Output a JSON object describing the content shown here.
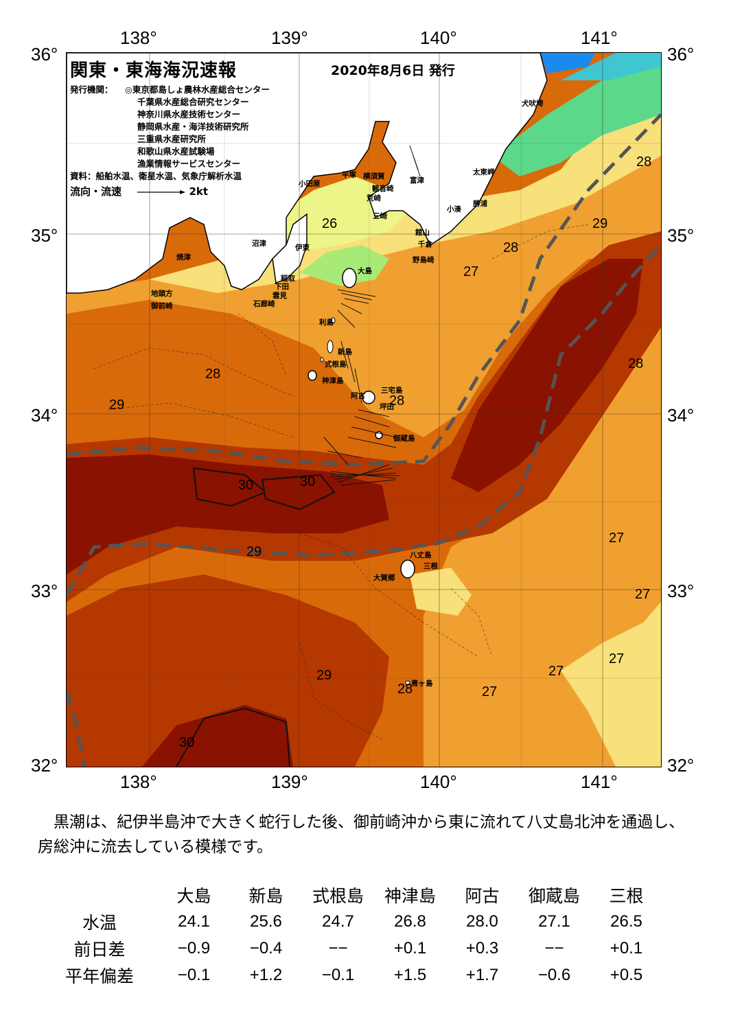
{
  "map": {
    "title": "関東・東海海況速報",
    "issue_date": "2020年8月6日 発行",
    "publisher_label": "発行機関：",
    "publishers": [
      "◎東京都島しょ農林水産総合センター",
      "千葉県水産総合研究センター",
      "神奈川県水産技術センター",
      "静岡県水産・海洋技術研究所",
      "三重県水産研究所",
      "和歌山県水産試験場",
      "漁業情報サービスセンター"
    ],
    "source": "資料：船舶水温、衛星水温、気象庁解析水温",
    "legend_label": "流向・流速",
    "legend_speed": "2kt",
    "lon_top": [
      "138°",
      "139°",
      "140°",
      "141°"
    ],
    "lon_bottom": [
      "138°",
      "139°",
      "140°",
      "141°"
    ],
    "lat_left": [
      "36°",
      "35°",
      "34°",
      "33°",
      "32°"
    ],
    "lat_right": [
      "36°",
      "35°",
      "34°",
      "33°",
      "32°"
    ],
    "colors": {
      "t30": "#8a1200",
      "t29": "#b53800",
      "t28": "#d96a0a",
      "t27": "#f0a030",
      "t26": "#f8e07a",
      "t25": "#eef588",
      "t24": "#a8ea78",
      "t23": "#5cd88a",
      "t22": "#3fc6d0",
      "t21": "#1a8aee",
      "kuroshio_axis": "#555555"
    },
    "places": [
      {
        "name": "犬吠埼"
      },
      {
        "name": "太東岬"
      },
      {
        "name": "勝浦"
      },
      {
        "name": "小湊"
      },
      {
        "name": "富津"
      },
      {
        "name": "館山"
      },
      {
        "name": "千倉"
      },
      {
        "name": "野島崎"
      },
      {
        "name": "横須賀"
      },
      {
        "name": "観音崎"
      },
      {
        "name": "荒崎"
      },
      {
        "name": "三崎"
      },
      {
        "name": "平塚"
      },
      {
        "name": "小田原"
      },
      {
        "name": "伊東"
      },
      {
        "name": "沼津"
      },
      {
        "name": "焼津"
      },
      {
        "name": "大島"
      },
      {
        "name": "稲取"
      },
      {
        "name": "下田"
      },
      {
        "name": "雲見"
      },
      {
        "name": "石廊崎"
      },
      {
        "name": "地頭方"
      },
      {
        "name": "御前崎"
      },
      {
        "name": "利島"
      },
      {
        "name": "新島"
      },
      {
        "name": "式根島"
      },
      {
        "name": "神津島"
      },
      {
        "name": "三宅島"
      },
      {
        "name": "阿古"
      },
      {
        "name": "坪田"
      },
      {
        "name": "御蔵島"
      },
      {
        "name": "八丈島"
      },
      {
        "name": "三根"
      },
      {
        "name": "大賀郷"
      },
      {
        "name": "青ヶ島"
      }
    ],
    "temp_labels": [
      "26",
      "28",
      "29",
      "30",
      "30",
      "29",
      "28",
      "27",
      "28",
      "29",
      "28",
      "28",
      "27",
      "27",
      "27",
      "27",
      "29",
      "28",
      "27",
      "30"
    ]
  },
  "summary": "黒潮は、紀伊半島沖で大きく蛇行した後、御前崎沖から東に流れて八丈島北沖を通過し、房総沖に流去している模様です。",
  "table": {
    "columns": [
      "大島",
      "新島",
      "式根島",
      "神津島",
      "阿古",
      "御蔵島",
      "三根"
    ],
    "rows": [
      {
        "label": "水温",
        "values": [
          "24.1",
          "25.6",
          "24.7",
          "26.8",
          "28.0",
          "27.1",
          "26.5"
        ]
      },
      {
        "label": "前日差",
        "values": [
          "−0.9",
          "−0.4",
          "−−",
          "+0.1",
          "+0.3",
          "−−",
          "+0.1"
        ]
      },
      {
        "label": "平年偏差",
        "values": [
          "−0.1",
          "+1.2",
          "−0.1",
          "+1.5",
          "+1.7",
          "−0.6",
          "+0.5"
        ]
      }
    ]
  }
}
